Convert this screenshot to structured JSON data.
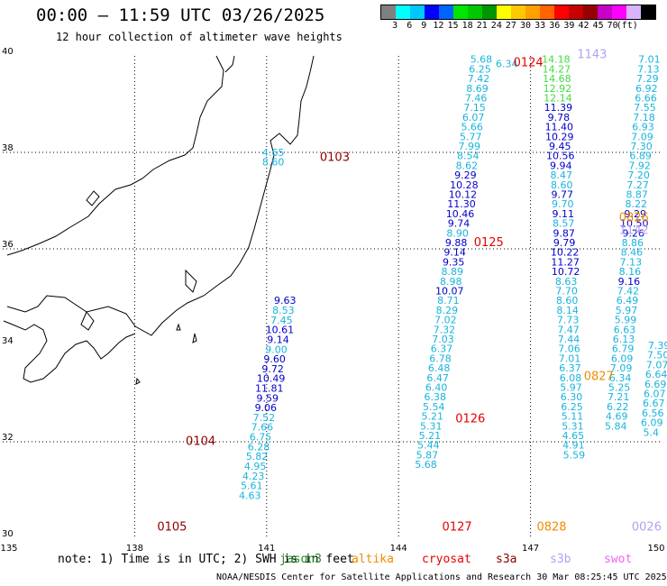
{
  "header": {
    "title": "00:00 – 11:59 UTC 03/26/2025",
    "subtitle": "12 hour collection of altimeter wave heights"
  },
  "legend": {
    "colors": [
      "#808080",
      "#00ffff",
      "#00c8ff",
      "#0000ff",
      "#0064ff",
      "#00e600",
      "#00c800",
      "#009600",
      "#ffff00",
      "#ffc800",
      "#ffa000",
      "#ff6400",
      "#ff0000",
      "#c80000",
      "#960000",
      "#c800c8",
      "#ff00ff",
      "#d8b4ff",
      "#000000"
    ],
    "ticks": [
      "3",
      "6",
      "9",
      "12",
      "15",
      "18",
      "21",
      "24",
      "27",
      "30",
      "33",
      "36",
      "39",
      "42",
      "45",
      "70",
      "(ft)"
    ]
  },
  "axes": {
    "lat_labels": [
      "40",
      "38",
      "36",
      "34",
      "32",
      "30"
    ],
    "lon_labels": [
      "135",
      "138",
      "141",
      "144",
      "147",
      "150"
    ]
  },
  "colors": {
    "blue": "#0000c8",
    "cyan": "#18b4dc",
    "green": "#40dc40",
    "pass_red": "#e60000",
    "pass_darkred": "#8c0000",
    "pass_orange": "#f08c00",
    "pass_lilac": "#b4a0f0"
  },
  "passes": [
    {
      "label": "0103",
      "lon": 142.55,
      "lat": 37.92,
      "color": "#8c0000"
    },
    {
      "label": "0104",
      "lon": 139.5,
      "lat": 32.03,
      "color": "#8c0000"
    },
    {
      "label": "0105",
      "lon": 138.85,
      "lat": 30.25,
      "color": "#8c0000"
    },
    {
      "label": "0124",
      "lon": 146.95,
      "lat": 39.88,
      "color": "#e60000"
    },
    {
      "label": "0125",
      "lon": 146.05,
      "lat": 36.15,
      "color": "#e60000"
    },
    {
      "label": "0126",
      "lon": 145.63,
      "lat": 32.5,
      "color": "#e60000"
    },
    {
      "label": "0127",
      "lon": 145.33,
      "lat": 30.25,
      "color": "#e60000"
    },
    {
      "label": "0826",
      "lon": 149.35,
      "lat": 36.66,
      "color": "#f08c00"
    },
    {
      "label": "0827",
      "lon": 148.55,
      "lat": 33.37,
      "color": "#f08c00"
    },
    {
      "label": "0828",
      "lon": 147.48,
      "lat": 30.25,
      "color": "#f08c00"
    },
    {
      "label": "1143",
      "lon": 148.4,
      "lat": 40.05,
      "color": "#b4a0f0"
    },
    {
      "label": "1142",
      "lon": 149.35,
      "lat": 36.4,
      "color": "#b4a0f0"
    },
    {
      "label": "0026",
      "lon": 149.64,
      "lat": 30.25,
      "color": "#b4a0f0"
    }
  ],
  "tracks": [
    {
      "lon0": 141.15,
      "lat0": 38.0,
      "dlon": 0.0,
      "dlat": -0.2,
      "values": [
        "4.65",
        "8.60"
      ],
      "colors": [
        "c",
        "c"
      ]
    },
    {
      "lon0": 141.42,
      "lat0": 34.93,
      "dlon": -0.04,
      "dlat": -0.202,
      "values": [
        "9.63",
        "8.53",
        "7.45",
        "10.61",
        "9.14",
        "9.00",
        "9.60",
        "9.72",
        "10.49",
        "11.81",
        "9.59",
        "9.06",
        "7.52",
        "7.66",
        "6.75",
        "6.28",
        "5.82",
        "4.95",
        "4.23",
        "5.61",
        "4.63"
      ],
      "colors": [
        "b",
        "c",
        "c",
        "b",
        "b",
        "c",
        "b",
        "b",
        "b",
        "b",
        "b",
        "b",
        "c",
        "c",
        "c",
        "c",
        "c",
        "c",
        "c",
        "c",
        "c"
      ]
    },
    {
      "lon0": 145.88,
      "lat0": 39.93,
      "dlon": -0.03,
      "dlat": -0.2,
      "values": [
        "5.68",
        "6.25",
        "7.42",
        "8.69",
        "7.46",
        "7.15",
        "6.07",
        "5.66",
        "5.77",
        "7.99",
        "8.54",
        "8.62",
        "9.29",
        "10.28",
        "10.12",
        "11.30",
        "10.46",
        "9.74",
        "8.90",
        "9.88",
        "9.14",
        "9.35",
        "8.89",
        "8.98",
        "10.07",
        "8.71",
        "8.29",
        "7.02",
        "7.32",
        "7.03",
        "6.37",
        "6.78",
        "6.48",
        "6.47",
        "6.40",
        "6.38",
        "5.54",
        "5.21",
        "5.31",
        "5.21",
        "5.44",
        "5.87",
        "5.68"
      ],
      "colors": [
        "c",
        "c",
        "c",
        "c",
        "c",
        "c",
        "c",
        "c",
        "c",
        "c",
        "c",
        "c",
        "b",
        "b",
        "b",
        "b",
        "b",
        "b",
        "c",
        "b",
        "b",
        "b",
        "c",
        "c",
        "b",
        "c",
        "c",
        "c",
        "c",
        "c",
        "c",
        "c",
        "c",
        "c",
        "c",
        "c",
        "c",
        "c",
        "c",
        "c",
        "c",
        "c",
        "c"
      ]
    },
    {
      "lon0": 146.46,
      "lat0": 39.84,
      "dlon": 0.0,
      "dlat": 0.0,
      "values": [
        "6.34"
      ],
      "colors": [
        "c"
      ]
    },
    {
      "lon0": 147.58,
      "lat0": 39.93,
      "dlon": 0.01,
      "dlat": -0.2,
      "values": [
        "14.18",
        "14.27",
        "14.68",
        "12.92",
        "12.14",
        "11.39",
        "9.78",
        "11.40",
        "10.29",
        "9.45",
        "10.56",
        "9.94",
        "8.47",
        "8.60",
        "9.77",
        "9.70",
        "9.11",
        "8.57",
        "9.87",
        "9.79",
        "10.22",
        "11.27",
        "10.72",
        "8.63",
        "7.70",
        "8.60",
        "8.14",
        "7.73",
        "7.47",
        "7.44",
        "7.06",
        "7.01",
        "6.37",
        "6.08",
        "5.97",
        "6.30",
        "6.25",
        "5.11",
        "5.31",
        "4.65",
        "4.91",
        "5.59"
      ],
      "colors": [
        "g",
        "g",
        "g",
        "g",
        "g",
        "b",
        "b",
        "b",
        "b",
        "b",
        "b",
        "b",
        "c",
        "c",
        "b",
        "c",
        "b",
        "c",
        "b",
        "b",
        "b",
        "b",
        "b",
        "c",
        "c",
        "c",
        "c",
        "c",
        "c",
        "c",
        "c",
        "c",
        "c",
        "c",
        "c",
        "c",
        "c",
        "c",
        "c",
        "c",
        "c",
        "c"
      ]
    },
    {
      "lon0": 149.7,
      "lat0": 39.93,
      "dlon": -0.02,
      "dlat": -0.2,
      "values": [
        "7.01",
        "7.13",
        "7.29",
        "6.92",
        "6.66",
        "7.55",
        "7.18",
        "6.93",
        "7.09",
        "7.30",
        "6.89",
        "7.92",
        "7.20",
        "7.27",
        "8.87",
        "8.22",
        "9.29",
        "10.50",
        "9.26",
        "8.86",
        "8.46",
        "7.13",
        "8.16",
        "9.16",
        "7.42",
        "6.49",
        "5.97",
        "5.99",
        "6.63",
        "6.13",
        "6.79",
        "6.09",
        "7.09",
        "6.34",
        "5.25",
        "7.21",
        "6.22",
        "4.69",
        "5.84"
      ],
      "colors": [
        "c",
        "c",
        "c",
        "c",
        "c",
        "c",
        "c",
        "c",
        "c",
        "c",
        "c",
        "c",
        "c",
        "c",
        "c",
        "c",
        "b",
        "b",
        "b",
        "c",
        "c",
        "c",
        "c",
        "b",
        "c",
        "c",
        "c",
        "c",
        "c",
        "c",
        "c",
        "c",
        "c",
        "c",
        "c",
        "c",
        "c",
        "c",
        "c"
      ]
    },
    {
      "lon0": 149.92,
      "lat0": 34.0,
      "dlon": -0.02,
      "dlat": -0.2,
      "values": [
        "7.39",
        "7.50",
        "7.07",
        "6.64",
        "6.69",
        "6.07",
        "6.67",
        "6.56",
        "6.09",
        "5.4"
      ],
      "colors": [
        "c",
        "c",
        "c",
        "c",
        "c",
        "c",
        "c",
        "c",
        "c",
        "c"
      ]
    }
  ],
  "footer": {
    "note": "note: 1) Time is in UTC; 2) SWH is in feet",
    "satellites": [
      {
        "name": "jason3",
        "color": "#1e8c1e"
      },
      {
        "name": "altika",
        "color": "#f08c00"
      },
      {
        "name": "cryosat",
        "color": "#e60000"
      },
      {
        "name": "s3a",
        "color": "#8c0000"
      },
      {
        "name": "s3b",
        "color": "#b4a0f0"
      },
      {
        "name": "swot",
        "color": "#f064f0"
      }
    ],
    "credit": "NOAA/NESDIS Center for Satellite Applications and Research    30 Mar 08:25:45 UTC 2025"
  }
}
